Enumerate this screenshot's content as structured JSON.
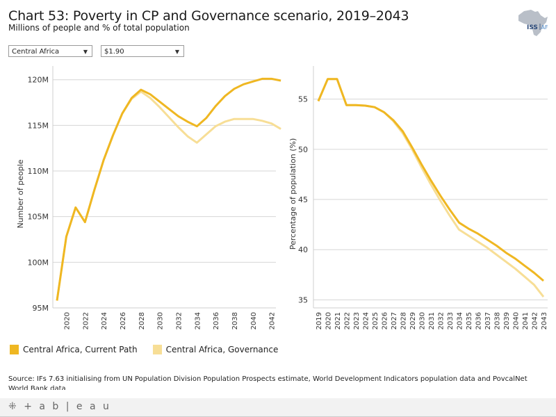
{
  "header": {
    "title": "Chart 53: Poverty in CP and Governance scenario, 2019–2043",
    "subtitle": "Millions of people and % of total population",
    "logo_text_iss": "ISS",
    "logo_text_af": "AF"
  },
  "filters": {
    "region": {
      "selected": "Central Africa",
      "icon": "chevron-down-icon"
    },
    "threshold": {
      "selected": "$1.90",
      "icon": "chevron-down-icon"
    }
  },
  "colors": {
    "current_path": "#EFB722",
    "governance": "#F7DE96",
    "grid": "#d6d6d6"
  },
  "legend": [
    {
      "label": "Central Africa, Current Path",
      "color": "#EFB722"
    },
    {
      "label": "Central Africa, Governance",
      "color": "#F7DE96"
    }
  ],
  "source": "Source: IFs 7.63 initialising from UN Population Division Population Prospects estimate, World Development Indicators population data and PovcalNet World Bank data",
  "footer": {
    "brand": "+ a b | e a u"
  },
  "chart_data": [
    {
      "type": "line",
      "title": "",
      "xlabel": "",
      "ylabel": "Number of people",
      "ylim": [
        95,
        121.5
      ],
      "yticks": [
        95,
        100,
        105,
        110,
        115,
        120
      ],
      "ytick_labels": [
        "95M",
        "100M",
        "105M",
        "110M",
        "115M",
        "120M"
      ],
      "x": [
        2019,
        2020,
        2021,
        2022,
        2023,
        2024,
        2025,
        2026,
        2027,
        2028,
        2029,
        2030,
        2031,
        2032,
        2033,
        2034,
        2035,
        2036,
        2037,
        2038,
        2039,
        2040,
        2041,
        2042,
        2043
      ],
      "xticks": [
        2020,
        2022,
        2024,
        2026,
        2028,
        2030,
        2032,
        2034,
        2036,
        2038,
        2040,
        2042
      ],
      "grid": true,
      "legend": "bottom-left",
      "series": [
        {
          "name": "Central Africa, Current Path",
          "values": [
            95.8,
            102.8,
            106.0,
            104.4,
            107.9,
            111.2,
            113.9,
            116.3,
            118.0,
            118.9,
            118.4,
            117.6,
            116.8,
            116.0,
            115.4,
            114.9,
            115.8,
            117.1,
            118.2,
            119.0,
            119.5,
            119.8,
            120.1,
            120.1,
            119.9
          ]
        },
        {
          "name": "Central Africa, Governance",
          "values": [
            95.8,
            102.8,
            106.0,
            104.4,
            107.9,
            111.2,
            113.9,
            116.3,
            117.9,
            118.7,
            118.0,
            117.0,
            115.9,
            114.8,
            113.8,
            113.1,
            114.0,
            114.9,
            115.4,
            115.7,
            115.7,
            115.7,
            115.5,
            115.2,
            114.6
          ]
        }
      ]
    },
    {
      "type": "line",
      "title": "",
      "xlabel": "",
      "ylabel": "Percentage of population (%)",
      "ylim": [
        34.2,
        58.3
      ],
      "yticks": [
        35,
        40,
        45,
        50,
        55
      ],
      "ytick_labels": [
        "35",
        "40",
        "45",
        "50",
        "55"
      ],
      "x": [
        2019,
        2020,
        2021,
        2022,
        2023,
        2024,
        2025,
        2026,
        2027,
        2028,
        2029,
        2030,
        2031,
        2032,
        2033,
        2034,
        2035,
        2036,
        2037,
        2038,
        2039,
        2040,
        2041,
        2042,
        2043
      ],
      "xticks": [
        2019,
        2020,
        2021,
        2022,
        2023,
        2024,
        2025,
        2026,
        2027,
        2028,
        2029,
        2030,
        2031,
        2032,
        2033,
        2034,
        2035,
        2036,
        2037,
        2038,
        2039,
        2040,
        2041,
        2042,
        2043
      ],
      "grid": true,
      "legend": "bottom-left",
      "series": [
        {
          "name": "Central Africa, Current Path",
          "values": [
            54.8,
            57.0,
            57.0,
            54.4,
            54.4,
            54.35,
            54.2,
            53.7,
            52.9,
            51.8,
            50.2,
            48.5,
            46.9,
            45.4,
            44.0,
            42.7,
            42.1,
            41.6,
            41.0,
            40.4,
            39.7,
            39.1,
            38.4,
            37.7,
            36.9
          ]
        },
        {
          "name": "Central Africa, Governance",
          "values": [
            54.8,
            57.0,
            57.0,
            54.4,
            54.4,
            54.35,
            54.2,
            53.7,
            52.8,
            51.6,
            50.0,
            48.2,
            46.5,
            44.9,
            43.4,
            42.0,
            41.4,
            40.8,
            40.2,
            39.5,
            38.8,
            38.1,
            37.3,
            36.5,
            35.3
          ]
        }
      ]
    }
  ]
}
